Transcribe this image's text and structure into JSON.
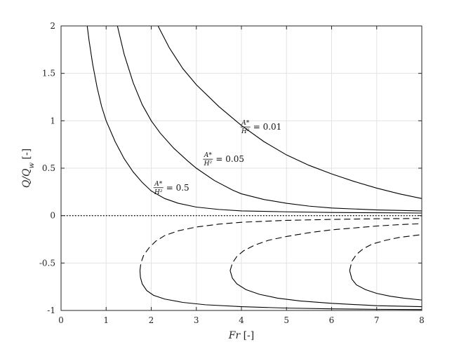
{
  "chart_data": {
    "type": "line",
    "title": "",
    "xlabel": {
      "var": "Fr",
      "unit": " [-]"
    },
    "ylabel": {
      "var": "Q/Q",
      "sub": "w",
      "unit": " [-]"
    },
    "xlim": [
      0,
      8
    ],
    "ylim": [
      -1,
      2
    ],
    "xticks": [
      "0",
      "1",
      "2",
      "3",
      "4",
      "5",
      "6",
      "7",
      "8"
    ],
    "yticks": [
      "-1",
      "-0.5",
      "0",
      "0.5",
      "1",
      "1.5",
      "2"
    ],
    "grid": true,
    "reference_line": {
      "y": 0,
      "style": "dotted"
    },
    "series": [
      {
        "style": "solid",
        "points": [
          [
            0.58,
            2.0
          ],
          [
            0.62,
            1.85
          ],
          [
            0.7,
            1.6
          ],
          [
            0.8,
            1.35
          ],
          [
            0.9,
            1.15
          ],
          [
            1.0,
            1.0
          ],
          [
            1.2,
            0.78
          ],
          [
            1.4,
            0.6
          ],
          [
            1.6,
            0.46
          ],
          [
            1.8,
            0.35
          ],
          [
            2.0,
            0.26
          ],
          [
            2.3,
            0.18
          ],
          [
            2.6,
            0.13
          ],
          [
            3.0,
            0.09
          ],
          [
            3.5,
            0.065
          ],
          [
            4.0,
            0.05
          ],
          [
            5.0,
            0.04
          ],
          [
            6.0,
            0.033
          ],
          [
            7.0,
            0.03
          ],
          [
            8.0,
            0.027
          ]
        ]
      },
      {
        "style": "solid",
        "points": [
          [
            1.25,
            2.0
          ],
          [
            1.4,
            1.7
          ],
          [
            1.6,
            1.4
          ],
          [
            1.8,
            1.17
          ],
          [
            2.0,
            1.0
          ],
          [
            2.2,
            0.87
          ],
          [
            2.5,
            0.71
          ],
          [
            2.8,
            0.58
          ],
          [
            3.0,
            0.5
          ],
          [
            3.4,
            0.37
          ],
          [
            3.8,
            0.27
          ],
          [
            4.0,
            0.23
          ],
          [
            4.5,
            0.17
          ],
          [
            5.0,
            0.13
          ],
          [
            5.5,
            0.1
          ],
          [
            6.0,
            0.08
          ],
          [
            7.0,
            0.06
          ],
          [
            8.0,
            0.05
          ]
        ]
      },
      {
        "style": "solid",
        "points": [
          [
            2.15,
            2.0
          ],
          [
            2.4,
            1.77
          ],
          [
            2.7,
            1.55
          ],
          [
            3.0,
            1.38
          ],
          [
            3.5,
            1.15
          ],
          [
            4.0,
            0.95
          ],
          [
            4.5,
            0.78
          ],
          [
            5.0,
            0.64
          ],
          [
            5.5,
            0.53
          ],
          [
            6.0,
            0.44
          ],
          [
            6.5,
            0.36
          ],
          [
            7.0,
            0.29
          ],
          [
            7.5,
            0.23
          ],
          [
            8.0,
            0.18
          ]
        ]
      },
      {
        "style": "dashed",
        "points": [
          [
            1.75,
            -0.58
          ],
          [
            1.77,
            -0.5
          ],
          [
            1.83,
            -0.42
          ],
          [
            1.95,
            -0.34
          ],
          [
            2.1,
            -0.27
          ],
          [
            2.3,
            -0.21
          ],
          [
            2.6,
            -0.16
          ],
          [
            3.0,
            -0.12
          ],
          [
            3.5,
            -0.09
          ],
          [
            4.0,
            -0.07
          ],
          [
            5.0,
            -0.05
          ],
          [
            6.0,
            -0.04
          ],
          [
            7.0,
            -0.033
          ],
          [
            8.0,
            -0.03
          ]
        ]
      },
      {
        "style": "solid",
        "points": [
          [
            1.75,
            -0.58
          ],
          [
            1.76,
            -0.65
          ],
          [
            1.8,
            -0.72
          ],
          [
            1.9,
            -0.79
          ],
          [
            2.05,
            -0.84
          ],
          [
            2.3,
            -0.88
          ],
          [
            2.7,
            -0.915
          ],
          [
            3.2,
            -0.94
          ],
          [
            4.0,
            -0.96
          ],
          [
            5.0,
            -0.975
          ],
          [
            6.0,
            -0.983
          ],
          [
            7.0,
            -0.988
          ],
          [
            8.0,
            -0.99
          ]
        ]
      },
      {
        "style": "dashed",
        "points": [
          [
            3.75,
            -0.58
          ],
          [
            3.8,
            -0.5
          ],
          [
            3.9,
            -0.43
          ],
          [
            4.05,
            -0.37
          ],
          [
            4.3,
            -0.31
          ],
          [
            4.6,
            -0.26
          ],
          [
            5.0,
            -0.22
          ],
          [
            5.5,
            -0.18
          ],
          [
            6.0,
            -0.15
          ],
          [
            6.5,
            -0.13
          ],
          [
            7.0,
            -0.11
          ],
          [
            7.5,
            -0.095
          ],
          [
            8.0,
            -0.085
          ]
        ]
      },
      {
        "style": "solid",
        "points": [
          [
            3.75,
            -0.58
          ],
          [
            3.8,
            -0.66
          ],
          [
            3.9,
            -0.72
          ],
          [
            4.1,
            -0.78
          ],
          [
            4.4,
            -0.83
          ],
          [
            4.8,
            -0.87
          ],
          [
            5.3,
            -0.9
          ],
          [
            6.0,
            -0.925
          ],
          [
            7.0,
            -0.95
          ],
          [
            8.0,
            -0.96
          ]
        ]
      },
      {
        "style": "dashed",
        "points": [
          [
            6.4,
            -0.58
          ],
          [
            6.45,
            -0.48
          ],
          [
            6.55,
            -0.41
          ],
          [
            6.7,
            -0.35
          ],
          [
            6.9,
            -0.3
          ],
          [
            7.2,
            -0.26
          ],
          [
            7.5,
            -0.23
          ],
          [
            8.0,
            -0.2
          ]
        ]
      },
      {
        "style": "solid",
        "points": [
          [
            6.4,
            -0.58
          ],
          [
            6.45,
            -0.67
          ],
          [
            6.55,
            -0.73
          ],
          [
            6.75,
            -0.78
          ],
          [
            7.0,
            -0.82
          ],
          [
            7.3,
            -0.85
          ],
          [
            7.6,
            -0.87
          ],
          [
            8.0,
            -0.89
          ]
        ]
      }
    ],
    "annotations": [
      {
        "numerator": "A*",
        "denominator": "H²",
        "equals": "= 0.5",
        "x": 2.05,
        "y": 0.28
      },
      {
        "numerator": "A*",
        "denominator": "H²",
        "equals": "= 0.05",
        "x": 3.15,
        "y": 0.58
      },
      {
        "numerator": "A*",
        "denominator": "H²",
        "equals": "= 0.01",
        "x": 3.98,
        "y": 0.92
      }
    ]
  }
}
